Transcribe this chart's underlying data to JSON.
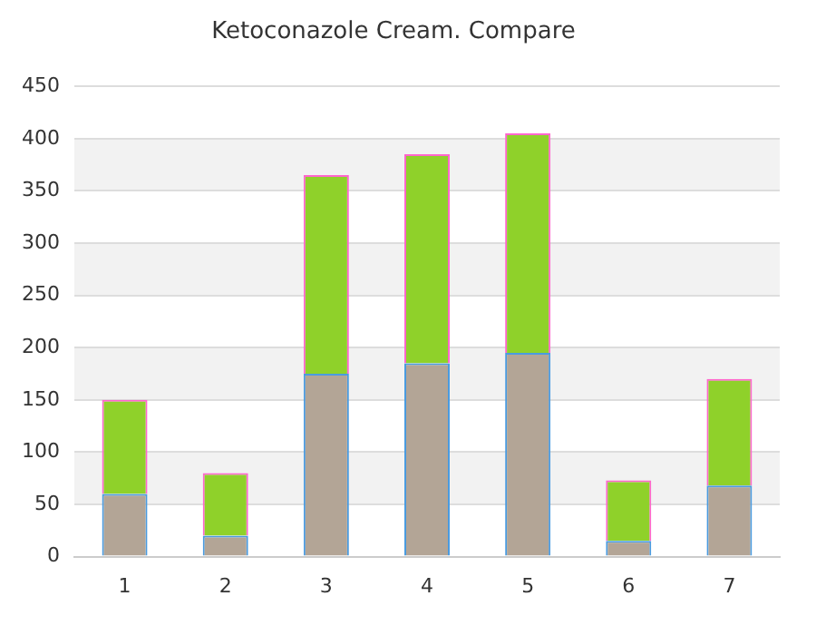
{
  "chart_data": {
    "type": "bar",
    "title": "Ketoconazole Cream. Compare",
    "categories": [
      "1",
      "2",
      "3",
      "4",
      "5",
      "6",
      "7"
    ],
    "stacked": true,
    "series": [
      {
        "color": "#b3a596",
        "values": [
          60,
          20,
          175,
          185,
          195,
          15,
          68
        ]
      },
      {
        "color": "#8fd12a",
        "values": [
          90,
          60,
          190,
          200,
          210,
          58,
          102
        ]
      }
    ],
    "ylim": [
      0,
      450
    ],
    "yticks": [
      0,
      50,
      100,
      150,
      200,
      250,
      300,
      350,
      400,
      450
    ],
    "grid": "y"
  }
}
